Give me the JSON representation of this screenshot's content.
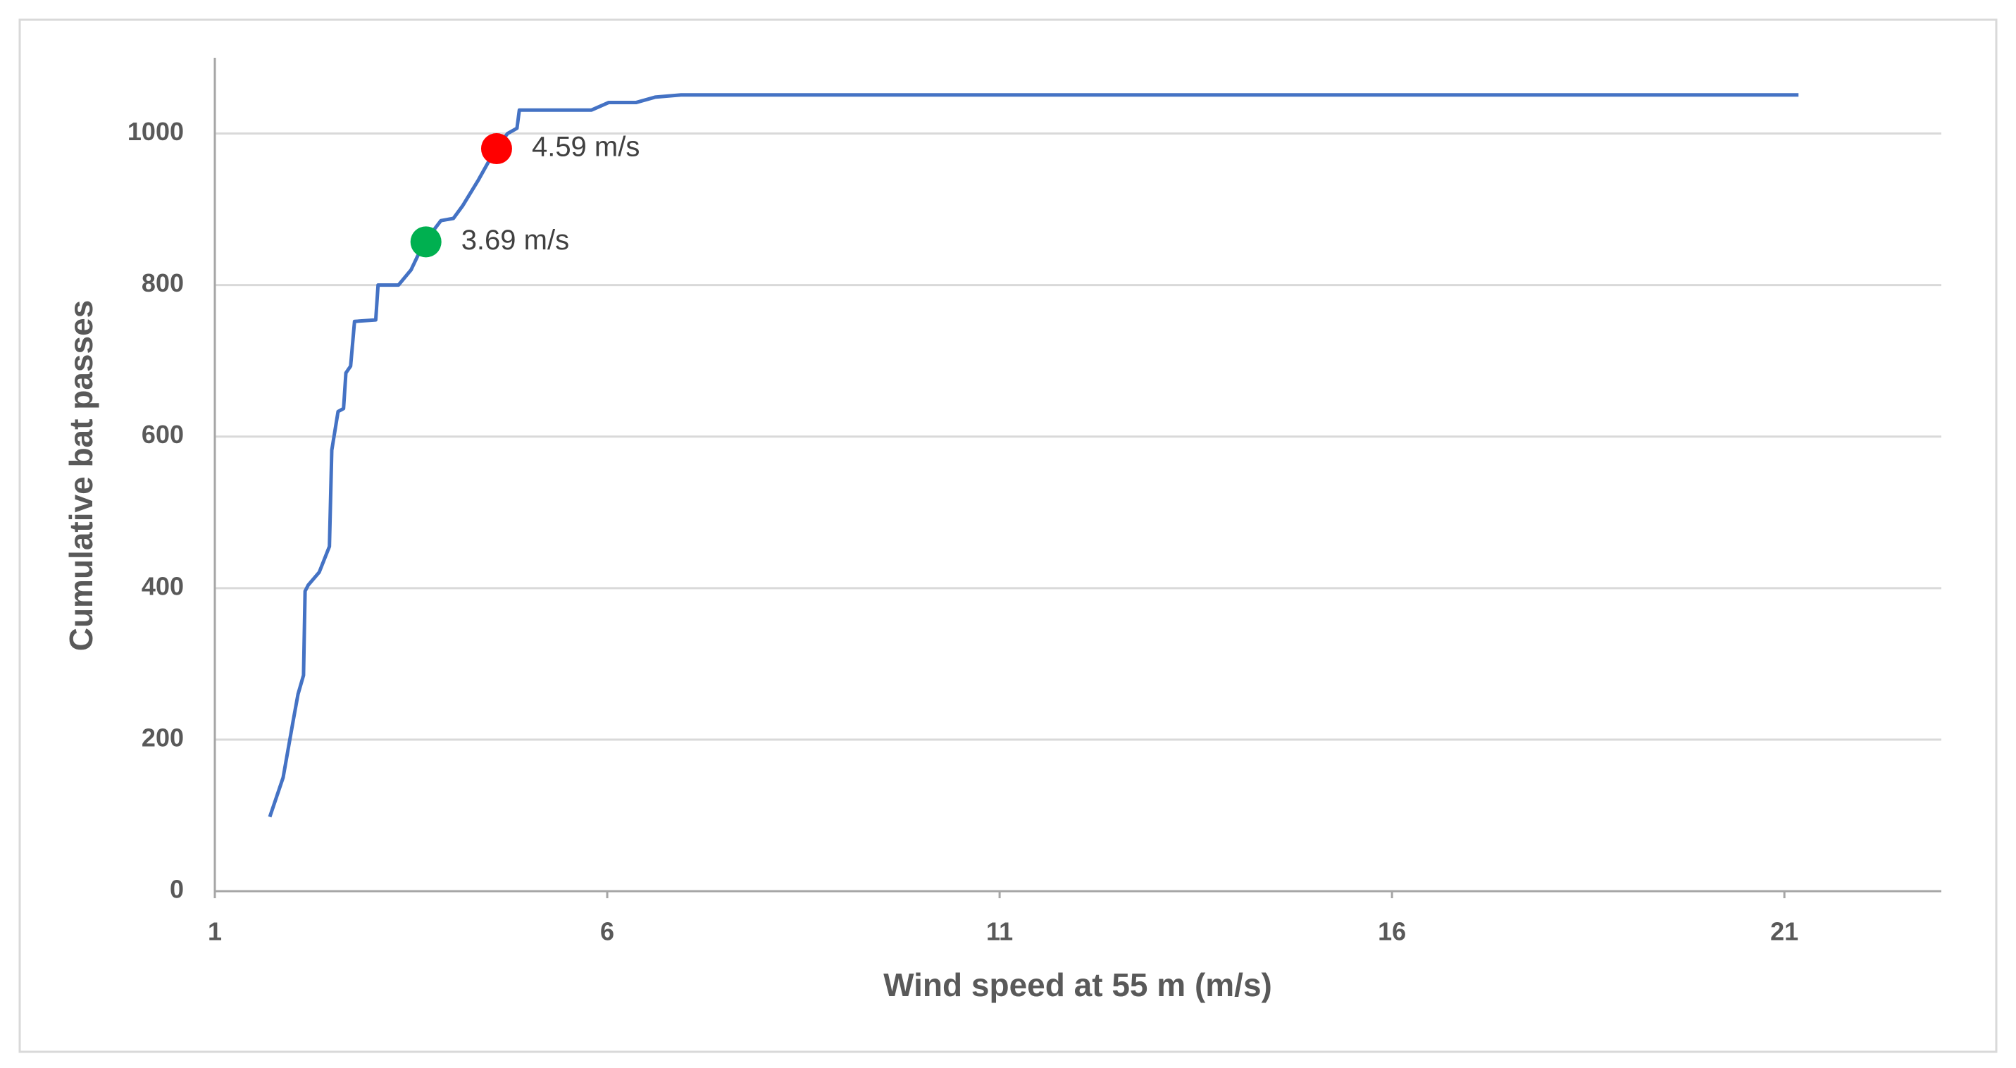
{
  "chart_data": {
    "type": "line",
    "x_label": "Wind speed at 55 m (m/s)",
    "y_label": "Cumulative  bat passes",
    "xlim": [
      1,
      23
    ],
    "xticks": [
      1,
      6,
      11,
      16,
      21
    ],
    "ylim": [
      0,
      1100
    ],
    "yticks": [
      0,
      200,
      400,
      600,
      800,
      1000
    ],
    "grid": true,
    "series": [
      {
        "color": "#4472c4",
        "x": [
          1.7,
          1.87,
          2.0,
          2.06,
          2.13,
          2.15,
          2.19,
          2.33,
          2.46,
          2.49,
          2.57,
          2.64,
          2.67,
          2.73,
          2.78,
          3.05,
          3.08,
          3.34,
          3.5,
          3.67,
          3.8,
          3.88,
          4.04,
          4.16,
          4.36,
          4.57,
          4.73,
          4.85,
          4.88,
          5.8,
          6.02,
          6.37,
          6.61,
          6.94,
          21.18
        ],
        "values": [
          98,
          150,
          226,
          260,
          285,
          396,
          404,
          421,
          455,
          582,
          633,
          637,
          684,
          693,
          752,
          754,
          800,
          800,
          820,
          857,
          874,
          885,
          888,
          905,
          939,
          978,
          1000,
          1007,
          1031,
          1031,
          1041,
          1041,
          1048,
          1051,
          1051
        ]
      }
    ],
    "markers": [
      {
        "x": 3.69,
        "y": 857,
        "color": "#00b050",
        "label": "3.69 m/s"
      },
      {
        "x": 4.59,
        "y": 980,
        "color": "#ff0000",
        "label": "4.59 m/s"
      }
    ]
  }
}
